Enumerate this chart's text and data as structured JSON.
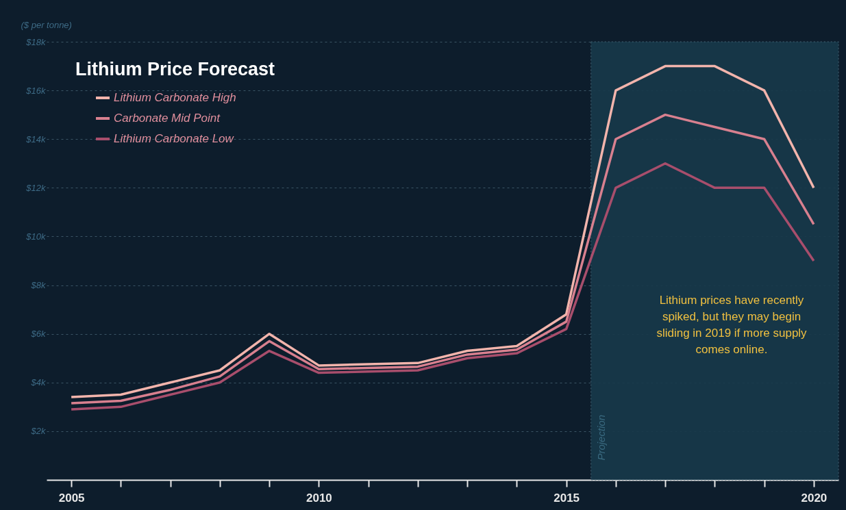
{
  "chart_data": {
    "type": "line",
    "title": "Lithium Price Forecast",
    "ylabel": "($ per tonne)",
    "x": [
      2005,
      2006,
      2007,
      2008,
      2009,
      2010,
      2011,
      2012,
      2013,
      2014,
      2015,
      2016,
      2017,
      2018,
      2019,
      2020
    ],
    "series": [
      {
        "name": "Lithium Carbonate High",
        "color": "#f2b4ac",
        "values": [
          3400,
          3500,
          4000,
          4500,
          6000,
          4700,
          4750,
          4800,
          5300,
          5500,
          6800,
          16000,
          17000,
          17000,
          16000,
          12000
        ]
      },
      {
        "name": "Carbonate Mid Point",
        "color": "#d8808f",
        "values": [
          3150,
          3250,
          3700,
          4250,
          5700,
          4550,
          4600,
          4650,
          5150,
          5350,
          6500,
          14000,
          15000,
          14500,
          14000,
          10500
        ]
      },
      {
        "name": "Lithium Carbonate Low",
        "color": "#a84e6c",
        "values": [
          2900,
          3000,
          3500,
          4000,
          5300,
          4400,
          4450,
          4500,
          5000,
          5200,
          6200,
          12000,
          13000,
          12000,
          12000,
          9000
        ]
      }
    ],
    "xlim": [
      2004.5,
      2020.5
    ],
    "xticks": [
      2005,
      {
        "value": 2006,
        "label": null
      },
      {
        "value": 2007,
        "label": null
      },
      {
        "value": 2008,
        "label": null
      },
      {
        "value": 2009,
        "label": null
      },
      2010,
      {
        "value": 2011,
        "label": null
      },
      {
        "value": 2012,
        "label": null
      },
      {
        "value": 2013,
        "label": null
      },
      {
        "value": 2014,
        "label": null
      },
      2015,
      {
        "value": 2016,
        "label": null
      },
      {
        "value": 2017,
        "label": null
      },
      {
        "value": 2018,
        "label": null
      },
      {
        "value": 2019,
        "label": null
      },
      2020
    ],
    "ylim": [
      0,
      18000
    ],
    "yticks": [
      {
        "value": 2000,
        "label": "$2k"
      },
      {
        "value": 4000,
        "label": "$4k"
      },
      {
        "value": 6000,
        "label": "$6k"
      },
      {
        "value": 8000,
        "label": "$8k"
      },
      {
        "value": 10000,
        "label": "$10k"
      },
      {
        "value": 12000,
        "label": "$12k"
      },
      {
        "value": 14000,
        "label": "$14k"
      },
      {
        "value": 16000,
        "label": "$16k"
      },
      {
        "value": 18000,
        "label": "$18k"
      }
    ],
    "bands": [
      {
        "axis": "x",
        "from": 2015.5,
        "to": 2020.5,
        "label": "Projection",
        "color": "#17394a"
      }
    ],
    "annotations": [
      "Lithium prices have recently spiked, but they may begin sliding in 2019 if more supply comes online."
    ],
    "grid": "y",
    "legend": "top left",
    "marker": "none",
    "line_style": "solid"
  }
}
